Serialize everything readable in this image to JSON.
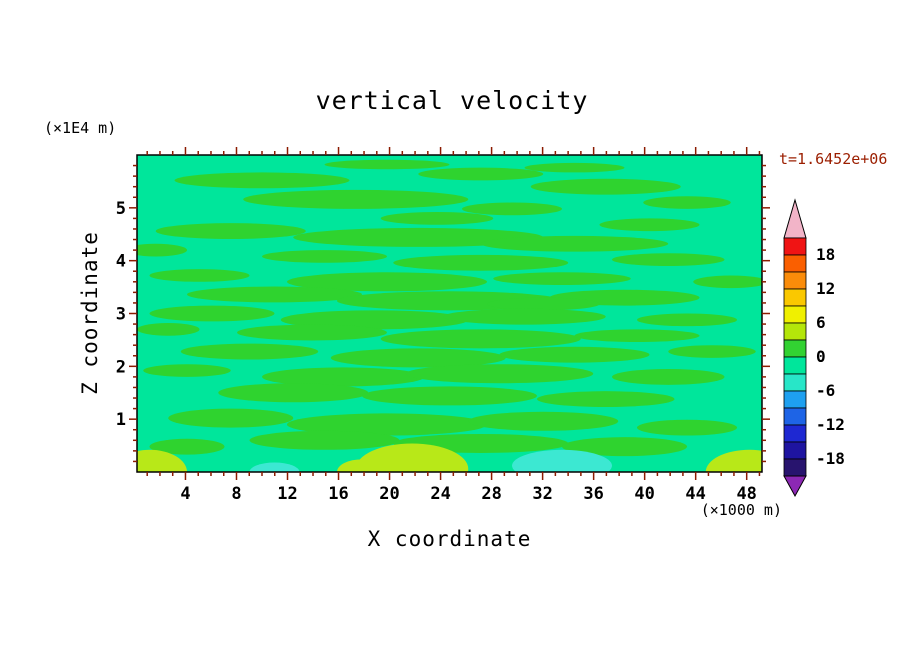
{
  "title": "vertical velocity",
  "time_label": "t=1.6452e+06",
  "axes": {
    "x": {
      "label": "X coordinate",
      "unit": "(×1000 m)",
      "min": 0.2,
      "max": 49.2,
      "minor_step": 1,
      "major_ticks": [
        4,
        8,
        12,
        16,
        20,
        24,
        28,
        32,
        36,
        40,
        44,
        48
      ]
    },
    "z": {
      "label": "Z coordinate",
      "unit": "(×1E4 m)",
      "min": 0,
      "max": 6,
      "minor_step": 0.2,
      "major_ticks": [
        1,
        2,
        3,
        4,
        5
      ]
    }
  },
  "frame": {
    "frame_color": "#000000",
    "tick_color": "#8b1a00"
  },
  "colorbar": {
    "arrow_top_color": "#f2b4c8",
    "arrow_bottom_color": "#8c28b4",
    "segments": [
      "#f01414",
      "#fa5f00",
      "#fa8c0a",
      "#fac800",
      "#f0f000",
      "#b4e60a",
      "#32d232",
      "#00e69b",
      "#28e6c8",
      "#1ea0f0",
      "#1e64e6",
      "#1e28d2",
      "#1e14a0",
      "#28146e"
    ],
    "labels": [
      {
        "text": "18",
        "boundary": 1
      },
      {
        "text": "12",
        "boundary": 3
      },
      {
        "text": "6",
        "boundary": 5
      },
      {
        "text": "0",
        "boundary": 7
      },
      {
        "text": "-6",
        "boundary": 9
      },
      {
        "text": "-12",
        "boundary": 11
      },
      {
        "text": "-18",
        "boundary": 13
      }
    ]
  },
  "field": {
    "background": "#00e69b",
    "palette": {
      "g": "#2fd32f",
      "yg": "#b8e818",
      "c": "#3ce8d2"
    },
    "blobs": [
      {
        "c": "g",
        "e": [
          40,
          3,
          10,
          1.5
        ]
      },
      {
        "c": "g",
        "e": [
          70,
          4,
          8,
          1.5
        ]
      },
      {
        "c": "g",
        "e": [
          20,
          8,
          14,
          2.5
        ]
      },
      {
        "c": "g",
        "e": [
          55,
          6,
          10,
          2
        ]
      },
      {
        "c": "g",
        "e": [
          75,
          10,
          12,
          2.5
        ]
      },
      {
        "c": "g",
        "e": [
          35,
          14,
          18,
          3
        ]
      },
      {
        "c": "g",
        "e": [
          60,
          17,
          8,
          2
        ]
      },
      {
        "c": "g",
        "e": [
          88,
          15,
          7,
          2
        ]
      },
      {
        "c": "g",
        "e": [
          48,
          20,
          9,
          2
        ]
      },
      {
        "c": "g",
        "e": [
          82,
          22,
          8,
          2
        ]
      },
      {
        "c": "g",
        "e": [
          15,
          24,
          12,
          2.5
        ]
      },
      {
        "c": "g",
        "e": [
          45,
          26,
          20,
          3
        ]
      },
      {
        "c": "g",
        "e": [
          70,
          28,
          15,
          2.5
        ]
      },
      {
        "c": "g",
        "e": [
          3,
          30,
          5,
          2
        ]
      },
      {
        "c": "g",
        "e": [
          30,
          32,
          10,
          2
        ]
      },
      {
        "c": "g",
        "e": [
          55,
          34,
          14,
          2.5
        ]
      },
      {
        "c": "g",
        "e": [
          85,
          33,
          9,
          2
        ]
      },
      {
        "c": "g",
        "e": [
          10,
          38,
          8,
          2
        ]
      },
      {
        "c": "g",
        "e": [
          40,
          40,
          16,
          3
        ]
      },
      {
        "c": "g",
        "e": [
          68,
          39,
          11,
          2
        ]
      },
      {
        "c": "g",
        "e": [
          95,
          40,
          6,
          2
        ]
      },
      {
        "c": "g",
        "e": [
          22,
          44,
          14,
          2.5
        ]
      },
      {
        "c": "g",
        "e": [
          50,
          46,
          18,
          3
        ]
      },
      {
        "c": "g",
        "e": [
          78,
          45,
          12,
          2.5
        ]
      },
      {
        "c": "g",
        "e": [
          65,
          47,
          9,
          2
        ]
      },
      {
        "c": "g",
        "e": [
          12,
          50,
          10,
          2.5
        ]
      },
      {
        "c": "g",
        "e": [
          38,
          52,
          15,
          3
        ]
      },
      {
        "c": "g",
        "e": [
          62,
          51,
          13,
          2.5
        ]
      },
      {
        "c": "g",
        "e": [
          88,
          52,
          8,
          2
        ]
      },
      {
        "c": "g",
        "e": [
          5,
          55,
          5,
          2
        ]
      },
      {
        "c": "g",
        "e": [
          28,
          56,
          12,
          2.5
        ]
      },
      {
        "c": "g",
        "e": [
          55,
          58,
          16,
          3
        ]
      },
      {
        "c": "g",
        "e": [
          80,
          57,
          10,
          2
        ]
      },
      {
        "c": "g",
        "e": [
          18,
          62,
          11,
          2.5
        ]
      },
      {
        "c": "g",
        "e": [
          45,
          64,
          14,
          3
        ]
      },
      {
        "c": "g",
        "e": [
          70,
          63,
          12,
          2.5
        ]
      },
      {
        "c": "g",
        "e": [
          92,
          62,
          7,
          2
        ]
      },
      {
        "c": "g",
        "e": [
          8,
          68,
          7,
          2
        ]
      },
      {
        "c": "g",
        "e": [
          33,
          70,
          13,
          3
        ]
      },
      {
        "c": "g",
        "e": [
          58,
          69,
          15,
          3
        ]
      },
      {
        "c": "g",
        "e": [
          85,
          70,
          9,
          2.5
        ]
      },
      {
        "c": "g",
        "e": [
          25,
          75,
          12,
          3
        ]
      },
      {
        "c": "g",
        "e": [
          50,
          76,
          14,
          3
        ]
      },
      {
        "c": "g",
        "e": [
          75,
          77,
          11,
          2.5
        ]
      },
      {
        "c": "g",
        "e": [
          15,
          83,
          10,
          3
        ]
      },
      {
        "c": "g",
        "e": [
          40,
          85,
          16,
          3.5
        ]
      },
      {
        "c": "g",
        "e": [
          65,
          84,
          12,
          3
        ]
      },
      {
        "c": "g",
        "e": [
          88,
          86,
          8,
          2.5
        ]
      },
      {
        "c": "g",
        "e": [
          30,
          90,
          12,
          3
        ]
      },
      {
        "c": "g",
        "e": [
          55,
          91,
          14,
          3
        ]
      },
      {
        "c": "g",
        "e": [
          78,
          92,
          10,
          3
        ]
      },
      {
        "c": "g",
        "e": [
          8,
          92,
          6,
          2.5
        ]
      },
      {
        "c": "c",
        "e": [
          68,
          98,
          8,
          5
        ]
      },
      {
        "c": "c",
        "e": [
          22,
          100,
          4,
          3
        ]
      },
      {
        "c": "yg",
        "e": [
          2,
          100,
          6,
          7
        ]
      },
      {
        "c": "yg",
        "e": [
          44,
          99,
          9,
          8
        ]
      },
      {
        "c": "yg",
        "e": [
          98,
          100,
          7,
          7
        ]
      },
      {
        "c": "yg",
        "e": [
          36,
          100,
          4,
          4
        ]
      }
    ]
  },
  "chart_data": {
    "type": "heatmap",
    "title": "vertical velocity",
    "xlabel": "X coordinate",
    "x_unit": "(×1000 m)",
    "ylabel": "Z coordinate",
    "y_unit": "(×1E4 m)",
    "annotation": "t=1.6452e+06",
    "xlim": [
      0.2,
      49.2
    ],
    "ylim": [
      0,
      6
    ],
    "x_ticks": [
      4,
      8,
      12,
      16,
      20,
      24,
      28,
      32,
      36,
      40,
      44,
      48
    ],
    "y_ticks": [
      1,
      2,
      3,
      4,
      5
    ],
    "colorbar_tick_values": [
      18,
      12,
      6,
      0,
      -6,
      -12,
      -18
    ],
    "contour_interval": 3,
    "colorbar_range": [
      -21,
      21
    ],
    "field_summary": "Vertical velocity field is near zero everywhere: elongated horizontal green patches (0 to +3) over a spring-green background (-3 to 0); small yellow-green patches (+3 to +6) along the bottom boundary near x≈2, x≈22-26 and x≈48; small cyan patches (-6 to -3) along the bottom near x≈12 and x≈33.",
    "legend_position": "right colorbar with arrow ends (pink above +21, purple below -21)"
  }
}
